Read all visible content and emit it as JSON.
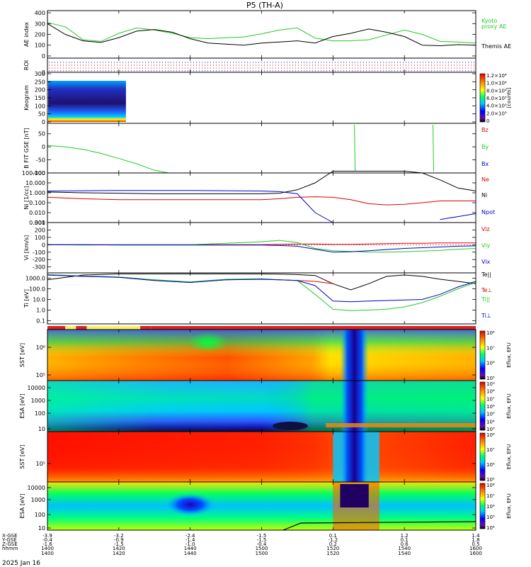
{
  "title": "P5 (TH-A)",
  "time_axis": {
    "ticks": [
      "1400",
      "1420",
      "1440",
      "1500",
      "1520",
      "1540",
      "1600"
    ],
    "rows": [
      {
        "label": "X-GSE",
        "values": [
          "-3.9",
          "-3.2",
          "-2.4",
          "-1.5",
          "0.1",
          "1.2",
          "1.4"
        ]
      },
      {
        "label": "Y-GSE",
        "values": [
          "-0.4",
          "-0.9",
          "-1.4",
          "-1.5",
          "-1.2",
          "0.1",
          "1.8"
        ]
      },
      {
        "label": "Z-GSE",
        "values": [
          "-1.6",
          "-1.5",
          "-1.0",
          "-0.4",
          "0.2",
          "0.6",
          "0.5"
        ]
      },
      {
        "label": "hhmm",
        "values": [
          "1400",
          "1420",
          "1440",
          "1500",
          "1520",
          "1540",
          "1600"
        ]
      }
    ],
    "date": "2025 Jan 16"
  },
  "chart_data": [
    {
      "type": "line",
      "panel": "ae",
      "ylabel": "AE index",
      "yticks": [
        "400",
        "300",
        "200",
        "100",
        "0"
      ],
      "ylim": [
        -20,
        420
      ],
      "x_minutes": [
        0,
        5,
        10,
        15,
        20,
        25,
        30,
        35,
        40,
        45,
        50,
        55,
        60,
        65,
        70,
        75,
        80,
        85,
        90,
        95,
        100,
        105,
        110,
        115,
        120
      ],
      "series": [
        {
          "name": "Kyoto proxy AE",
          "color": "#22cc22",
          "values": [
            310,
            270,
            150,
            135,
            210,
            260,
            240,
            210,
            170,
            160,
            170,
            175,
            205,
            240,
            260,
            165,
            140,
            140,
            150,
            195,
            240,
            200,
            135,
            130,
            120
          ]
        },
        {
          "name": "Themis AE",
          "color": "#000000",
          "values": [
            300,
            200,
            140,
            125,
            170,
            230,
            245,
            220,
            160,
            120,
            110,
            100,
            120,
            130,
            140,
            120,
            180,
            210,
            250,
            220,
            180,
            100,
            95,
            105,
            100
          ]
        }
      ],
      "right_labels": [
        {
          "text": "Kyoto",
          "color": "#22cc22"
        },
        {
          "text": "proxy AE",
          "color": "#22cc22"
        },
        {
          "text": "Themis AE",
          "color": "#000000"
        }
      ]
    },
    {
      "type": "heatmap",
      "panel": "roi",
      "ylabel": "ROI",
      "yticks": [
        "0"
      ],
      "note": "row of region-of-interest flags"
    },
    {
      "type": "heatmap",
      "panel": "keogram",
      "ylabel": "Keogram",
      "yticks": [
        "300",
        "250",
        "200",
        "150",
        "100",
        "50",
        "0"
      ],
      "colorbar": {
        "label": "[counts]",
        "ticks": [
          "1.2×10⁴",
          "1.0×10⁴",
          "8.0×10³",
          "6.0×10³",
          "4.0×10³",
          "2.0×10³",
          "0"
        ]
      },
      "data_until_minute": 22
    },
    {
      "type": "line",
      "panel": "bfield",
      "ylabel": "B FIT GSE [nT]",
      "yticks": [
        "50",
        "0",
        "-50",
        "-100"
      ],
      "ylim": [
        -100,
        90
      ],
      "series": [
        {
          "name": "Bz",
          "color": "#dd0000",
          "x_minutes": [],
          "values": []
        },
        {
          "name": "By",
          "color": "#22cc22",
          "x_minutes": [
            0,
            5,
            10,
            15,
            20,
            25,
            30,
            34
          ],
          "values": [
            5,
            0,
            -10,
            -25,
            -45,
            -65,
            -90,
            -100
          ]
        },
        {
          "name": "Bx",
          "color": "#0000cc",
          "x_minutes": [],
          "values": []
        }
      ],
      "spikes_by_minute": [
        86,
        108
      ]
    },
    {
      "type": "line",
      "panel": "density",
      "ylabel": "Ni [1/cc]",
      "log_scale": true,
      "yticks": [
        "100.000",
        "10.000",
        "1.000",
        "0.100",
        "0.010",
        "0.001"
      ],
      "ylim_log10": [
        -3,
        2
      ],
      "x_minutes": [
        0,
        10,
        20,
        30,
        40,
        50,
        60,
        65,
        70,
        75,
        80,
        85,
        90,
        95,
        100,
        105,
        110,
        115,
        120
      ],
      "series": [
        {
          "name": "Ne",
          "color": "#dd0000",
          "values": [
            0.35,
            0.25,
            0.2,
            0.2,
            0.2,
            0.2,
            0.2,
            0.25,
            0.35,
            0.4,
            0.35,
            0.2,
            0.08,
            0.06,
            0.07,
            0.1,
            0.15,
            0.15,
            0.15
          ]
        },
        {
          "name": "Ni",
          "color": "#000000",
          "values": [
            1.2,
            1.0,
            0.9,
            0.8,
            0.8,
            0.8,
            0.8,
            0.9,
            2,
            10,
            150,
            150,
            150,
            150,
            150,
            100,
            20,
            3,
            1.5
          ]
        },
        {
          "name": "Npot",
          "color": "#0000cc",
          "values": [
            1.5,
            1.6,
            1.7,
            1.7,
            1.7,
            1.6,
            1.5,
            1.3,
            0.8,
            0.01,
            0.001,
            null,
            null,
            null,
            null,
            null,
            0.002,
            0.004,
            0.008
          ]
        }
      ]
    },
    {
      "type": "line",
      "panel": "velocity",
      "ylabel": "Vi [km/s]",
      "yticks": [
        "300",
        "200",
        "100",
        "0",
        "-100",
        "-200",
        "-300"
      ],
      "ylim": [
        -380,
        300
      ],
      "x_minutes": [
        0,
        10,
        20,
        30,
        40,
        50,
        60,
        65,
        70,
        75,
        80,
        85,
        90,
        95,
        100,
        105,
        110,
        115,
        120
      ],
      "series": [
        {
          "name": "Viz",
          "color": "#dd0000",
          "values": [
            0,
            0,
            0,
            0,
            0,
            0,
            0,
            5,
            10,
            10,
            5,
            5,
            10,
            15,
            20,
            20,
            25,
            25,
            25
          ]
        },
        {
          "name": "Viy",
          "color": "#22cc22",
          "values": [
            0,
            -5,
            0,
            0,
            0,
            20,
            40,
            60,
            30,
            -50,
            -80,
            -90,
            -100,
            -100,
            -95,
            -85,
            -75,
            -60,
            -50
          ]
        },
        {
          "name": "Vix",
          "color": "#0000cc",
          "values": [
            0,
            0,
            -5,
            -5,
            -5,
            -5,
            -5,
            -10,
            -20,
            -60,
            -100,
            -95,
            -80,
            -65,
            -50,
            -40,
            -30,
            -20,
            -15
          ]
        }
      ]
    },
    {
      "type": "line",
      "panel": "temperature",
      "ylabel": "Ti [eV]",
      "log_scale": true,
      "yticks": [
        "1000.0",
        "100.0",
        "10.0",
        "1.0",
        "0.1"
      ],
      "ylim_log10": [
        -1.3,
        3.5
      ],
      "x_minutes": [
        0,
        10,
        20,
        30,
        40,
        50,
        60,
        65,
        70,
        75,
        80,
        85,
        90,
        95,
        100,
        105,
        110,
        115,
        120
      ],
      "series": [
        {
          "name": "Te||",
          "color": "#000000",
          "values": [
            700,
            2000,
            2500,
            2500,
            2500,
            2500,
            2500,
            2400,
            2200,
            1800,
            300,
            80,
            300,
            1500,
            2000,
            1500,
            800,
            500,
            300
          ]
        },
        {
          "name": "Te⊥",
          "color": "#dd0000",
          "values": [
            2000,
            1500,
            1200,
            600,
            400,
            700,
            800,
            700,
            600,
            500,
            300,
            null,
            null,
            null,
            null,
            null,
            null,
            null,
            null
          ]
        },
        {
          "name": "Ti||",
          "color": "#22cc22",
          "values": [
            2200,
            1600,
            1300,
            700,
            450,
            800,
            900,
            700,
            600,
            30,
            1.2,
            0.9,
            1,
            1.2,
            2,
            5,
            20,
            100,
            400
          ]
        },
        {
          "name": "Ti⊥",
          "color": "#0000cc",
          "values": [
            2000,
            1500,
            1200,
            600,
            400,
            700,
            800,
            700,
            600,
            200,
            7,
            6,
            7,
            8,
            9,
            10,
            30,
            150,
            500
          ]
        }
      ]
    },
    {
      "type": "heatmap",
      "panel": "mode_bar",
      "note": "instrument mode flags"
    },
    {
      "type": "heatmap",
      "panel": "sst_electron",
      "ylabel": "SST [eV]",
      "yticks": [
        "10⁶",
        "10⁵"
      ],
      "colorbar": {
        "label": "Eflux, EFU",
        "ticks": [
          "10⁸",
          "10⁷",
          "10⁶",
          "10⁵"
        ]
      }
    },
    {
      "type": "heatmap",
      "panel": "esa_electron",
      "ylabel": "ESA [eV]",
      "yticks": [
        "10000",
        "1000",
        "100",
        "10"
      ],
      "colorbar": {
        "label": "Eflux, EFU",
        "ticks": [
          "10⁹",
          "10⁸",
          "10⁷",
          "10⁶",
          "10⁵",
          "10⁴",
          "10³"
        ]
      }
    },
    {
      "type": "heatmap",
      "panel": "sst_ion",
      "ylabel": "SST [eV]",
      "yticks": [
        "10⁵"
      ],
      "colorbar": {
        "label": "Eflux, EFU",
        "ticks": [
          "10⁸",
          "10⁷",
          "10⁶",
          "10⁵"
        ]
      }
    },
    {
      "type": "heatmap",
      "panel": "esa_ion",
      "ylabel": "ESA [eV]",
      "yticks": [
        "10000",
        "1000",
        "100",
        "10"
      ],
      "colorbar": {
        "label": "Eflux, EFU",
        "ticks": [
          "10⁸",
          "10⁷",
          "10⁶",
          "10⁵",
          "10⁴"
        ]
      }
    }
  ]
}
